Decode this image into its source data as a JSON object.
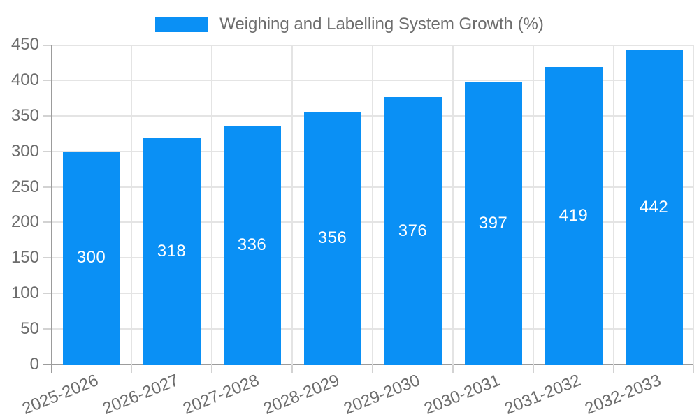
{
  "chart_data": {
    "type": "bar",
    "title": "Weighing and Labelling System Growth (%)",
    "legend": {
      "position": "top",
      "label": "Weighing and Labelling System Growth (%)"
    },
    "categories": [
      "2025-2026",
      "2026-2027",
      "2027-2028",
      "2028-2029",
      "2029-2030",
      "2030-2031",
      "2031-2032",
      "2032-2033"
    ],
    "series": [
      {
        "name": "Weighing and Labelling System Growth (%)",
        "values": [
          300,
          318,
          336,
          356,
          376,
          397,
          419,
          442
        ]
      }
    ],
    "value_labels_shown": true,
    "xlabel": "",
    "ylabel": "",
    "ylim": [
      0,
      450
    ],
    "ytick_step": 50,
    "yticks": [
      "0",
      "50",
      "100",
      "150",
      "200",
      "250",
      "300",
      "350",
      "400",
      "450"
    ],
    "grid": true,
    "colors": {
      "bar": "#0a90f5",
      "grid_line": "#e4e4e4",
      "axis_line": "#9c9c9c",
      "tick_mark": "#d2d2d2",
      "tick_text": "#6d6d6d",
      "value_label_text": "#ffffff",
      "background": "#ffffff"
    }
  }
}
